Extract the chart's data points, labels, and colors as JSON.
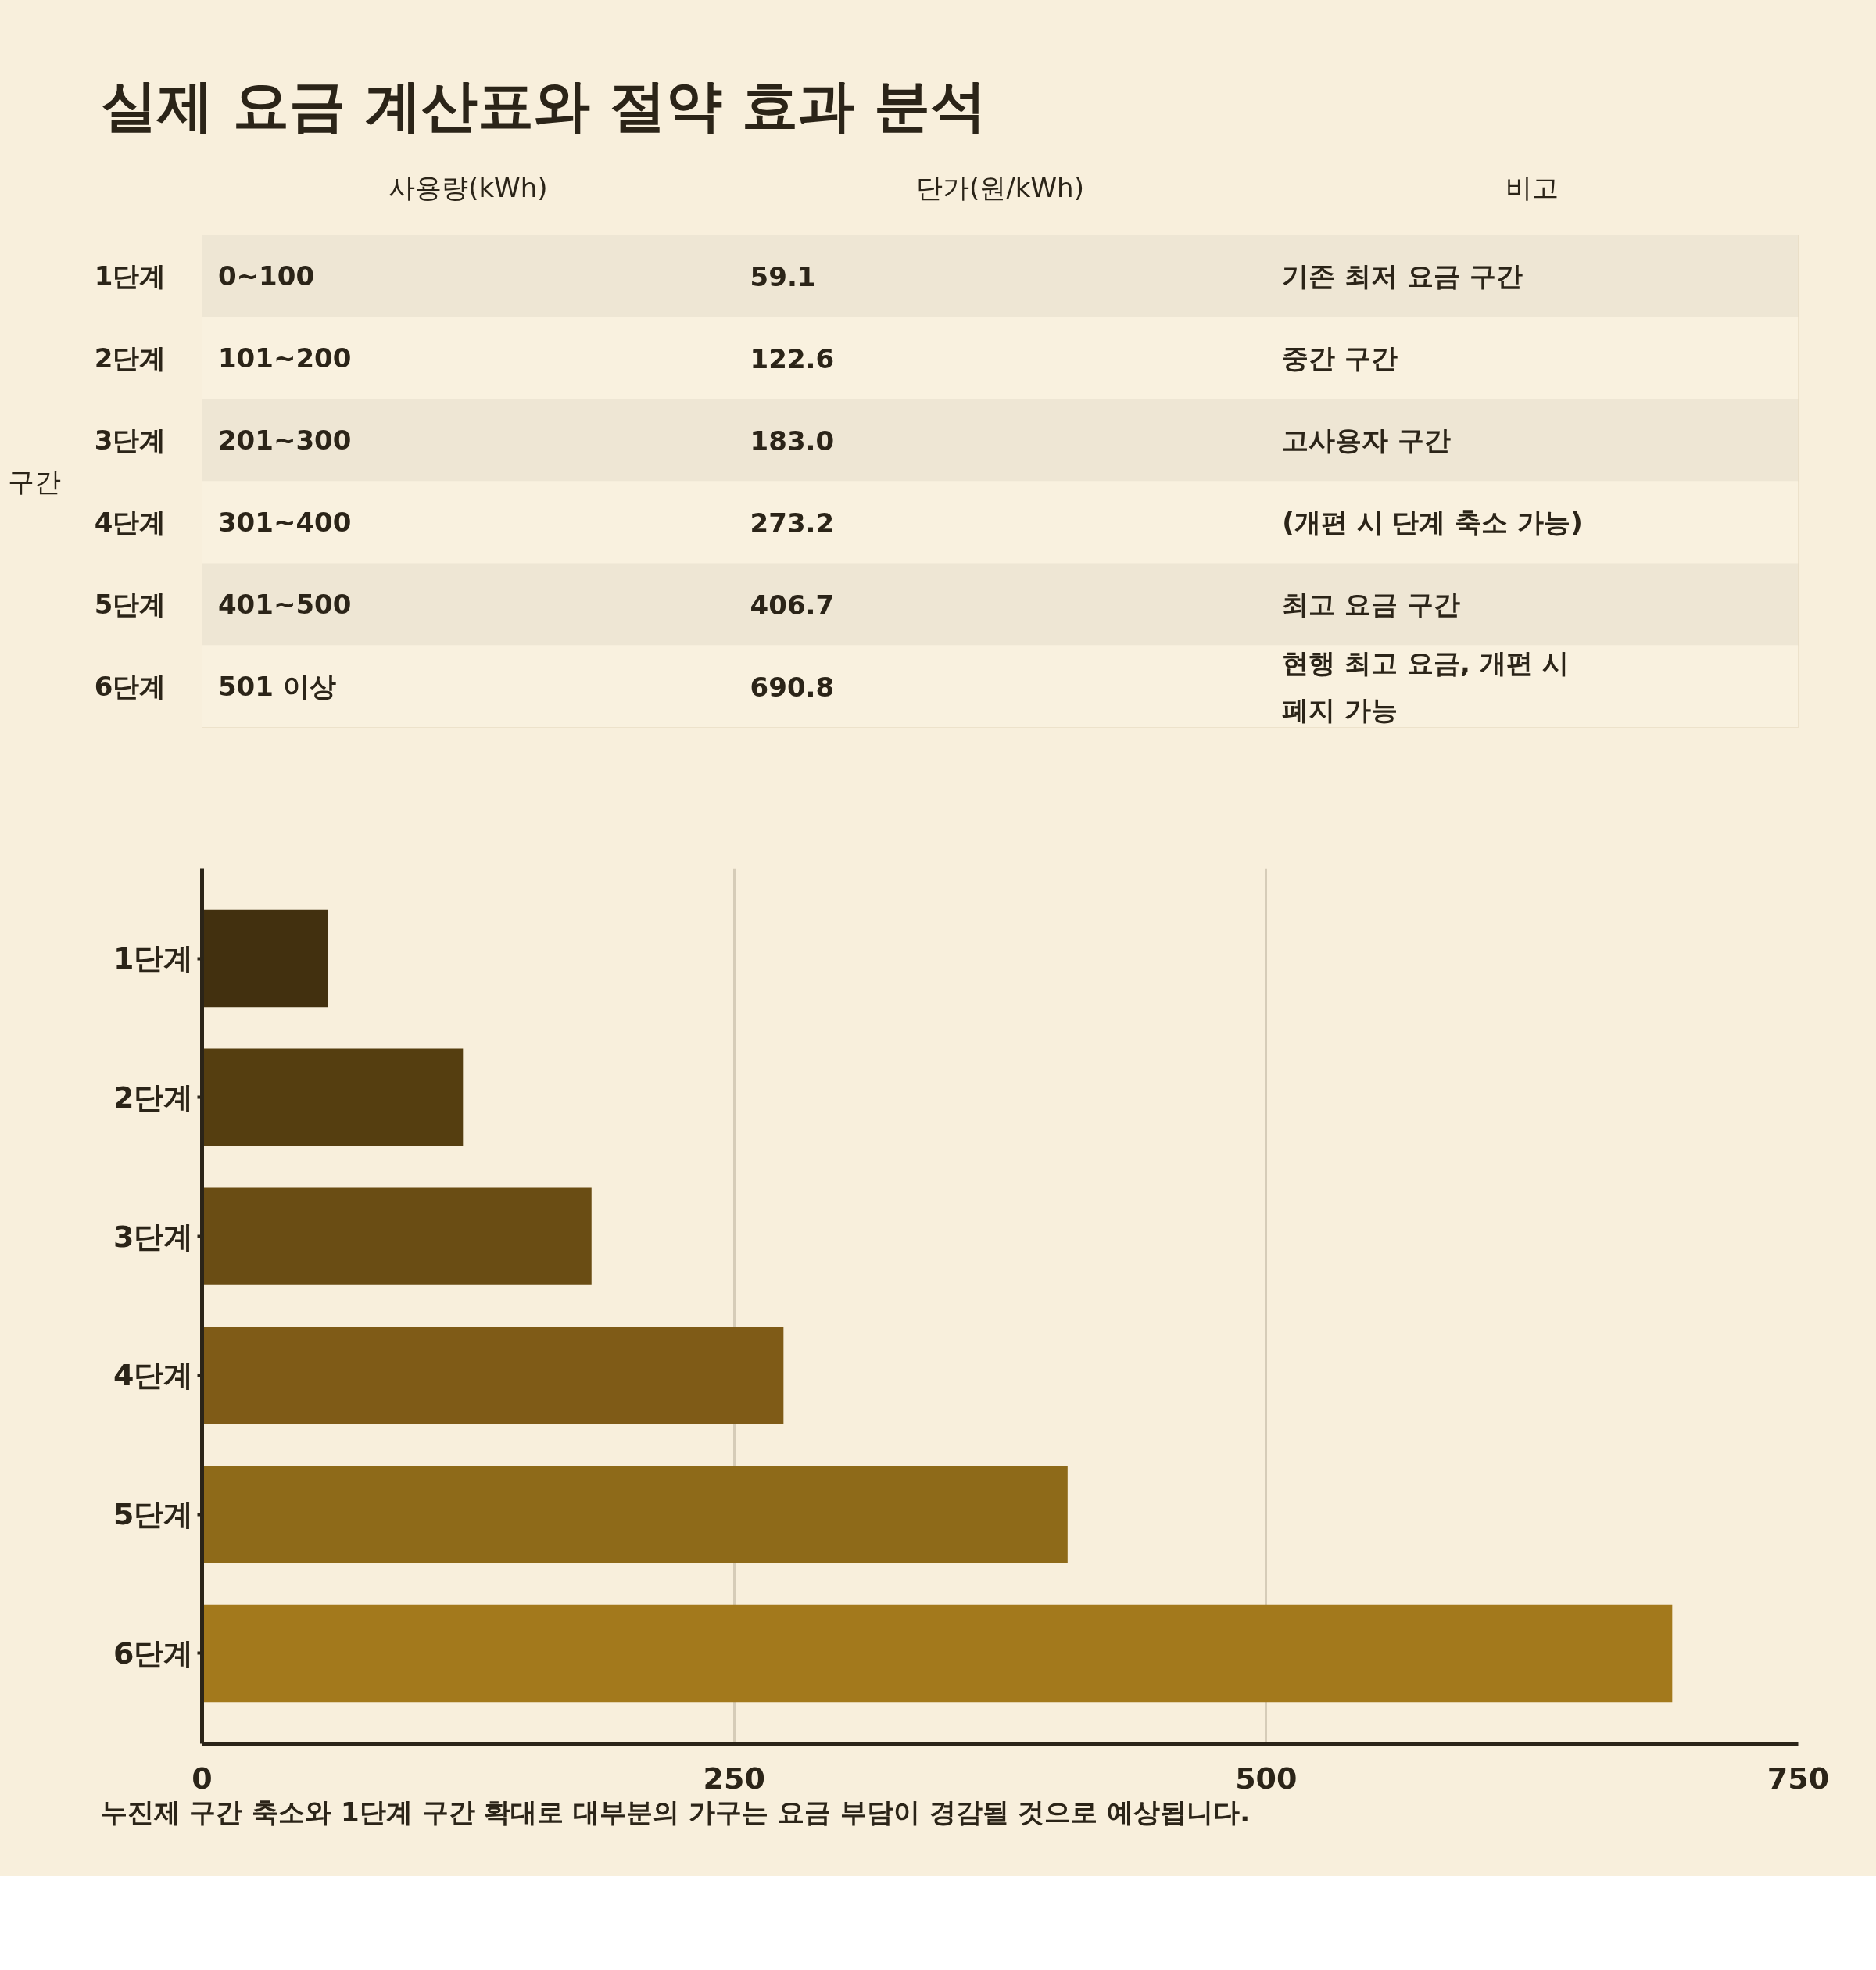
{
  "chart_data": [
    {
      "type": "heatmap",
      "title": "실제 요금 계산표와 절약 효과 분석",
      "ylabel": "구간",
      "categories": [
        "사용량(kWh)",
        "단가(원/kWh)",
        "비고"
      ],
      "y_categories": [
        "1단계",
        "2단계",
        "3단계",
        "4단계",
        "5단계",
        "6단계"
      ],
      "cells": [
        [
          null,
          null,
          null
        ],
        [
          null,
          null,
          null
        ],
        [
          null,
          null,
          null
        ],
        [
          null,
          null,
          null
        ],
        [
          null,
          null,
          null
        ],
        [
          null,
          null,
          null
        ]
      ],
      "cell_labels": [
        [
          "0~100",
          "59.1",
          "기존 최저 요금 구간"
        ],
        [
          "101~200",
          "122.6",
          "중간 구간"
        ],
        [
          "201~300",
          "183.0",
          "고사용자 구간"
        ],
        [
          "301~400",
          "273.2",
          "(개편 시 단계 축소 가능)"
        ],
        [
          "401~500",
          "406.7",
          "최고 요금 구간"
        ],
        [
          "501 이상",
          "690.8",
          "현행 최고 요금, 개편 시 폐지 가능"
        ]
      ]
    },
    {
      "type": "bar",
      "orientation": "horizontal",
      "categories": [
        "1단계",
        "2단계",
        "3단계",
        "4단계",
        "5단계",
        "6단계"
      ],
      "values": [
        59.1,
        122.6,
        183.0,
        273.2,
        406.7,
        690.8
      ],
      "colors": [
        "#42300f",
        "#553e10",
        "#6a4d14",
        "#7f5b17",
        "#8e6a19",
        "#a3791c"
      ],
      "xlim": [
        0,
        750
      ],
      "xticks": [
        0,
        250,
        500,
        750
      ],
      "grid": "x",
      "annotations": [
        "누진제 구간 축소와 1단계 구간 확대로 대부분의 가구는 요금 부담이 경감될 것으로 예상됩니다."
      ]
    }
  ]
}
